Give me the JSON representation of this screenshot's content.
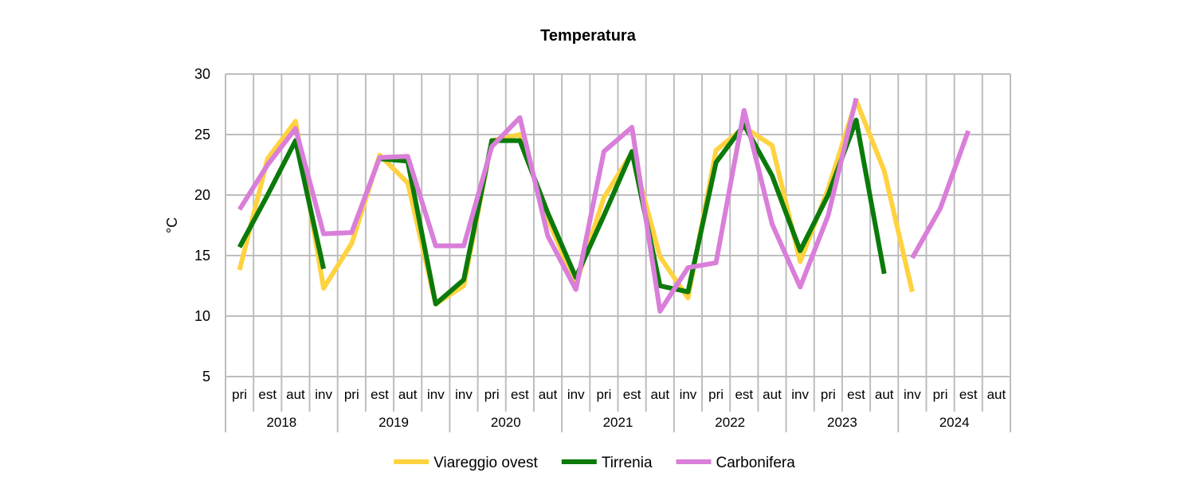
{
  "chart_data": {
    "type": "line",
    "title": "Temperatura",
    "ylabel": "°C",
    "xlabel": "",
    "ylim": [
      5,
      30
    ],
    "yticks": [
      5,
      10,
      15,
      20,
      25,
      30
    ],
    "grid": true,
    "legend_position": "bottom",
    "categories": [
      "pri",
      "est",
      "aut",
      "inv",
      "pri",
      "est",
      "aut",
      "inv",
      "inv",
      "pri",
      "est",
      "aut",
      "inv",
      "pri",
      "est",
      "aut",
      "inv",
      "pri",
      "est",
      "aut",
      "inv",
      "pri",
      "est",
      "aut",
      "inv",
      "pri",
      "est",
      "aut"
    ],
    "years": [
      {
        "label": "2018",
        "span": 4
      },
      {
        "label": "2019",
        "span": 4
      },
      {
        "label": "2020",
        "span": 4
      },
      {
        "label": "2021",
        "span": 4
      },
      {
        "label": "2022",
        "span": 4
      },
      {
        "label": "2023",
        "span": 4
      },
      {
        "label": "2024",
        "span": 4
      }
    ],
    "series": [
      {
        "name": "Viareggio ovest",
        "color": "#FFD23F",
        "values": [
          13.8,
          23.0,
          26.1,
          12.3,
          16.0,
          23.3,
          21.0,
          11.0,
          12.5,
          24.5,
          25.0,
          18.0,
          12.6,
          19.8,
          23.5,
          14.9,
          11.5,
          23.7,
          25.6,
          24.1,
          14.5,
          20.5,
          27.8,
          22.0,
          12.0,
          null,
          null,
          null
        ]
      },
      {
        "name": "Tirrenia",
        "color": "#0B7A0B",
        "values": [
          15.7,
          20.0,
          24.5,
          13.9,
          null,
          23.0,
          22.8,
          11.0,
          13.0,
          24.5,
          24.5,
          18.5,
          13.2,
          18.3,
          23.6,
          12.5,
          12.0,
          22.7,
          25.8,
          21.6,
          15.4,
          20.0,
          26.2,
          13.5,
          null,
          null,
          null,
          null
        ]
      },
      {
        "name": "Carbonifera",
        "color": "#D97ED9",
        "values": [
          18.8,
          22.5,
          25.5,
          16.8,
          16.9,
          23.1,
          23.2,
          15.8,
          15.8,
          24.0,
          26.4,
          16.6,
          12.2,
          23.6,
          25.6,
          10.4,
          14.0,
          14.4,
          27.0,
          17.6,
          12.4,
          18.3,
          28.0,
          null,
          14.8,
          18.9,
          25.3,
          null
        ]
      }
    ]
  }
}
